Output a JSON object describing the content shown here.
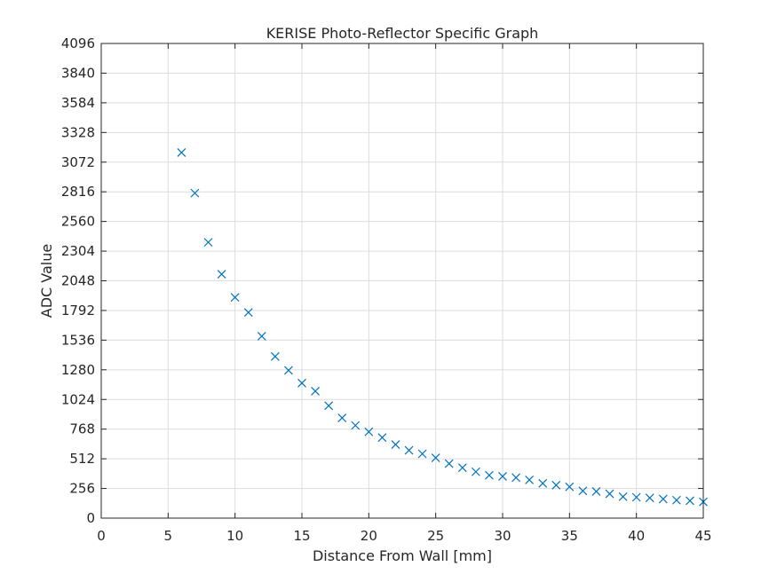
{
  "chart_data": {
    "type": "scatter",
    "title": "KERISE Photo-Reflector Specific Graph",
    "xlabel": "Distance From Wall [mm]",
    "ylabel": "ADC Value",
    "xlim": [
      0,
      45
    ],
    "ylim": [
      0,
      4096
    ],
    "xticks": [
      0,
      5,
      10,
      15,
      20,
      25,
      30,
      35,
      40,
      45
    ],
    "yticks": [
      0,
      256,
      512,
      768,
      1024,
      1280,
      1536,
      1792,
      2048,
      2304,
      2560,
      2816,
      3072,
      3328,
      3584,
      3840,
      4096
    ],
    "grid": true,
    "marker": "x",
    "series_color": "#0072BD",
    "series": [
      {
        "name": "ADC Value",
        "x": [
          6,
          7,
          8,
          9,
          10,
          11,
          12,
          13,
          14,
          15,
          16,
          17,
          18,
          19,
          20,
          21,
          22,
          23,
          24,
          25,
          26,
          27,
          28,
          29,
          30,
          31,
          32,
          33,
          34,
          35,
          36,
          37,
          38,
          39,
          40,
          41,
          42,
          43,
          44,
          45
        ],
        "y": [
          3155,
          2805,
          2380,
          2105,
          1905,
          1775,
          1570,
          1395,
          1275,
          1165,
          1095,
          970,
          865,
          800,
          745,
          695,
          635,
          585,
          555,
          520,
          470,
          435,
          400,
          370,
          360,
          350,
          330,
          300,
          285,
          270,
          235,
          230,
          210,
          185,
          180,
          175,
          165,
          155,
          150,
          140
        ]
      }
    ]
  }
}
